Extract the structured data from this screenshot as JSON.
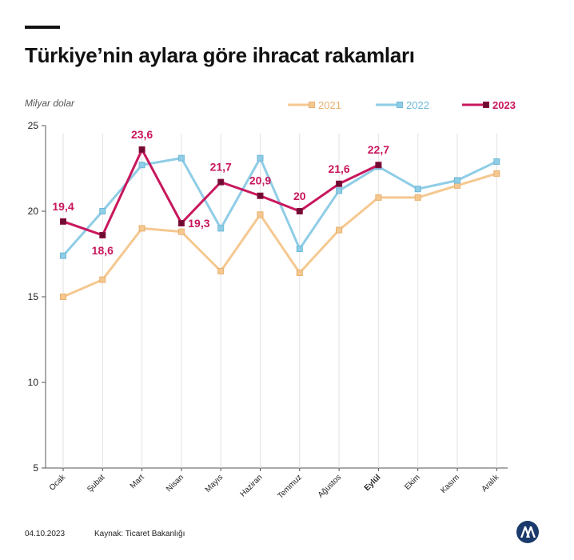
{
  "header": {
    "title": "Türkiye’nin aylara göre ihracat rakamları"
  },
  "footer": {
    "date": "04.10.2023",
    "source": "Kaynak: Ticaret Bakanlığı"
  },
  "chart_data": {
    "type": "line",
    "title": "Türkiye’nin aylara göre ihracat rakamları",
    "ylabel": "Milyar dolar",
    "xlabel": "",
    "ylim": [
      5,
      25
    ],
    "yticks": [
      5,
      10,
      15,
      20,
      25
    ],
    "categories": [
      "Ocak",
      "Şubat",
      "Mart",
      "Nisan",
      "Mayıs",
      "Haziran",
      "Temmuz",
      "Ağustos",
      "Eylül",
      "Ekim",
      "Kasım",
      "Aralık"
    ],
    "highlight_category": "Eylül",
    "grid": "vertical",
    "legend_position": "top-right",
    "series": [
      {
        "name": "2021",
        "color": "#f5c890",
        "marker_color": "#e8b070",
        "values": [
          15.0,
          16.0,
          19.0,
          18.8,
          16.5,
          19.8,
          16.4,
          18.9,
          20.8,
          20.8,
          21.5,
          22.2
        ]
      },
      {
        "name": "2022",
        "color": "#8fcde6",
        "marker_color": "#6fb8d8",
        "values": [
          17.4,
          20.0,
          22.7,
          23.1,
          19.0,
          23.1,
          17.8,
          21.2,
          22.6,
          21.3,
          21.8,
          22.9
        ]
      },
      {
        "name": "2023",
        "color": "#c8175d",
        "marker_color": "#8a1040",
        "values": [
          19.4,
          18.6,
          23.6,
          19.3,
          21.7,
          20.9,
          20.0,
          21.6,
          22.7,
          null,
          null,
          null
        ],
        "labels": [
          "19,4",
          "18,6",
          "23,6",
          "19,3",
          "21,7",
          "20,9",
          "20",
          "21,6",
          "22,7",
          null,
          null,
          null
        ]
      }
    ]
  }
}
